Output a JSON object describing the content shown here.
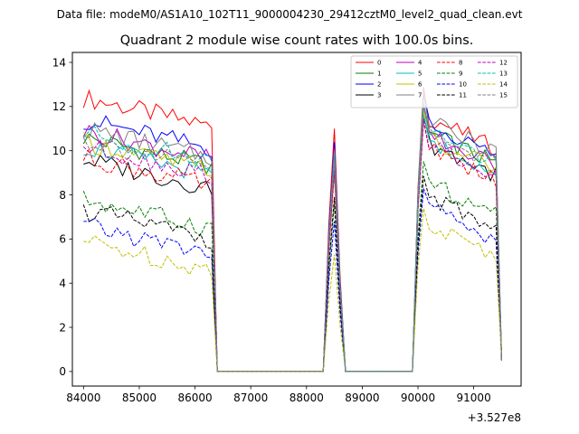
{
  "header": {
    "data_file_label": "Data file: modeM0/AS1A10_102T11_9000004230_29412cztM0_level2_quad_clean.evt"
  },
  "chart_data": {
    "type": "line",
    "title": "Quadrant 2 module wise count rates with 100.0s bins.",
    "xlabel": "",
    "ylabel": "",
    "x_offset_label": "+3.527e8",
    "xlim": [
      83800,
      91850
    ],
    "ylim": [
      -0.66,
      14.45
    ],
    "xticks": [
      84000,
      85000,
      86000,
      87000,
      88000,
      89000,
      90000,
      91000
    ],
    "yticks": [
      0,
      2,
      4,
      6,
      8,
      10,
      12,
      14
    ],
    "legend": {
      "position": "top-right",
      "columns": 4
    },
    "x_segments": [
      {
        "start": 84000,
        "step": 100,
        "count": 24
      },
      {
        "start": 86400,
        "step": 100,
        "count": 20
      },
      {
        "start": 88400,
        "step": 100,
        "count": 2
      },
      {
        "start": 88600,
        "step": 100,
        "count": 1
      },
      {
        "start": 88700,
        "step": 100,
        "count": 13
      },
      {
        "start": 90000,
        "step": 100,
        "count": 16
      }
    ],
    "series": [
      {
        "name": "0",
        "color": "#ff0000",
        "dashed": false,
        "level": 12.4,
        "peak": 11.0,
        "late": 11.5
      },
      {
        "name": "1",
        "color": "#008000",
        "dashed": false,
        "level": 10.6,
        "peak": 9.8,
        "late": 10.8
      },
      {
        "name": "2",
        "color": "#0000ff",
        "dashed": false,
        "level": 11.4,
        "peak": 10.4,
        "late": 11.2
      },
      {
        "name": "3",
        "color": "#000000",
        "dashed": false,
        "level": 9.6,
        "peak": 9.2,
        "late": 10.3
      },
      {
        "name": "4",
        "color": "#bf00bf",
        "dashed": false,
        "level": 10.9,
        "peak": 10.1,
        "late": 10.7
      },
      {
        "name": "5",
        "color": "#00bfbf",
        "dashed": false,
        "level": 10.2,
        "peak": 9.6,
        "late": 10.4
      },
      {
        "name": "6",
        "color": "#bfbf00",
        "dashed": false,
        "level": 10.4,
        "peak": 9.7,
        "late": 10.6
      },
      {
        "name": "7",
        "color": "#808080",
        "dashed": false,
        "level": 11.0,
        "peak": 10.0,
        "late": 11.3
      },
      {
        "name": "8",
        "color": "#ff0000",
        "dashed": true,
        "level": 9.7,
        "peak": 9.0,
        "late": 10.1
      },
      {
        "name": "9",
        "color": "#008000",
        "dashed": true,
        "level": 7.8,
        "peak": 7.6,
        "late": 8.5
      },
      {
        "name": "10",
        "color": "#0000ff",
        "dashed": true,
        "level": 6.6,
        "peak": 6.8,
        "late": 7.4
      },
      {
        "name": "11",
        "color": "#000000",
        "dashed": true,
        "level": 7.3,
        "peak": 7.9,
        "late": 7.9
      },
      {
        "name": "12",
        "color": "#bf00bf",
        "dashed": true,
        "level": 10.2,
        "peak": 9.4,
        "late": 10.2
      },
      {
        "name": "13",
        "color": "#00bfbf",
        "dashed": true,
        "level": 10.8,
        "peak": 9.9,
        "late": 10.9
      },
      {
        "name": "14",
        "color": "#bfbf00",
        "dashed": true,
        "level": 5.9,
        "peak": 5.3,
        "late": 6.6
      },
      {
        "name": "15",
        "color": "#808080",
        "dashed": true,
        "level": 10.5,
        "peak": 9.5,
        "late": 10.8
      }
    ]
  }
}
